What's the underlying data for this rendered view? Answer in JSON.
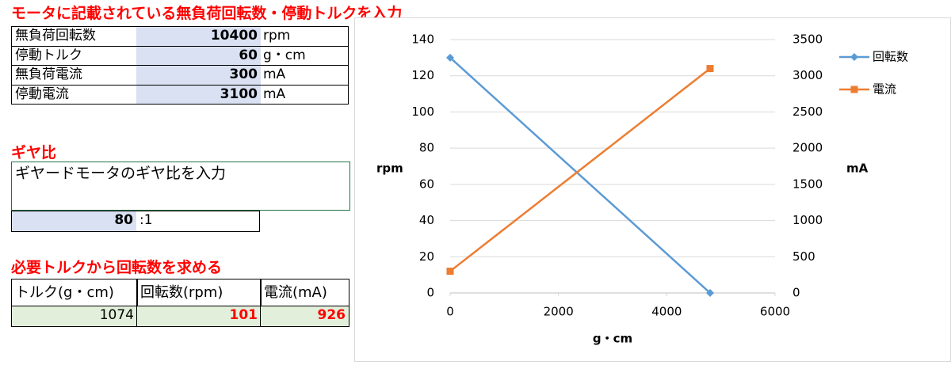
{
  "sheet": {
    "input_title": "モータに記載されている無負荷回転数・停動トルクを入力",
    "specs": [
      {
        "label": "無負荷回転数",
        "value": 10400,
        "unit": "rpm"
      },
      {
        "label": "停動トルク",
        "value": 60,
        "unit": "g・cm"
      },
      {
        "label": "無負荷電流",
        "value": 300,
        "unit": "mA"
      },
      {
        "label": "停動電流",
        "value": 3100,
        "unit": "mA"
      }
    ],
    "gear_title": "ギヤ比",
    "gear_note": "ギヤードモータのギヤ比を入力",
    "gear_ratio": 80,
    "gear_ratio_suffix": ":1",
    "calc_title": "必要トルクから回転数を求める",
    "calc_headers": [
      "トルク(g・cm)",
      "回転数(rpm)",
      "電流(mA)"
    ],
    "calc_values": [
      1074,
      101,
      926
    ]
  },
  "chart_data": {
    "type": "line",
    "x": [
      0,
      4800
    ],
    "series": [
      {
        "name": "回転数",
        "color": "#5b9bd5",
        "values": [
          130,
          0
        ]
      },
      {
        "name": "電流",
        "color": "#ed7d31",
        "values": [
          300,
          3100
        ],
        "axis": "y2"
      }
    ],
    "xlabel": "g・cm",
    "ylabel": "rpm",
    "y2label": "mA",
    "xlim": [
      0,
      6000
    ],
    "xticks": [
      0,
      2000,
      4000,
      6000
    ],
    "ylim": [
      0,
      140
    ],
    "yticks": [
      0,
      20,
      40,
      60,
      80,
      100,
      120,
      140
    ],
    "y2lim": [
      0,
      3500
    ],
    "y2ticks": [
      0,
      500,
      1000,
      1500,
      2000,
      2500,
      3000,
      3500
    ],
    "grid": true,
    "legend": "right"
  }
}
